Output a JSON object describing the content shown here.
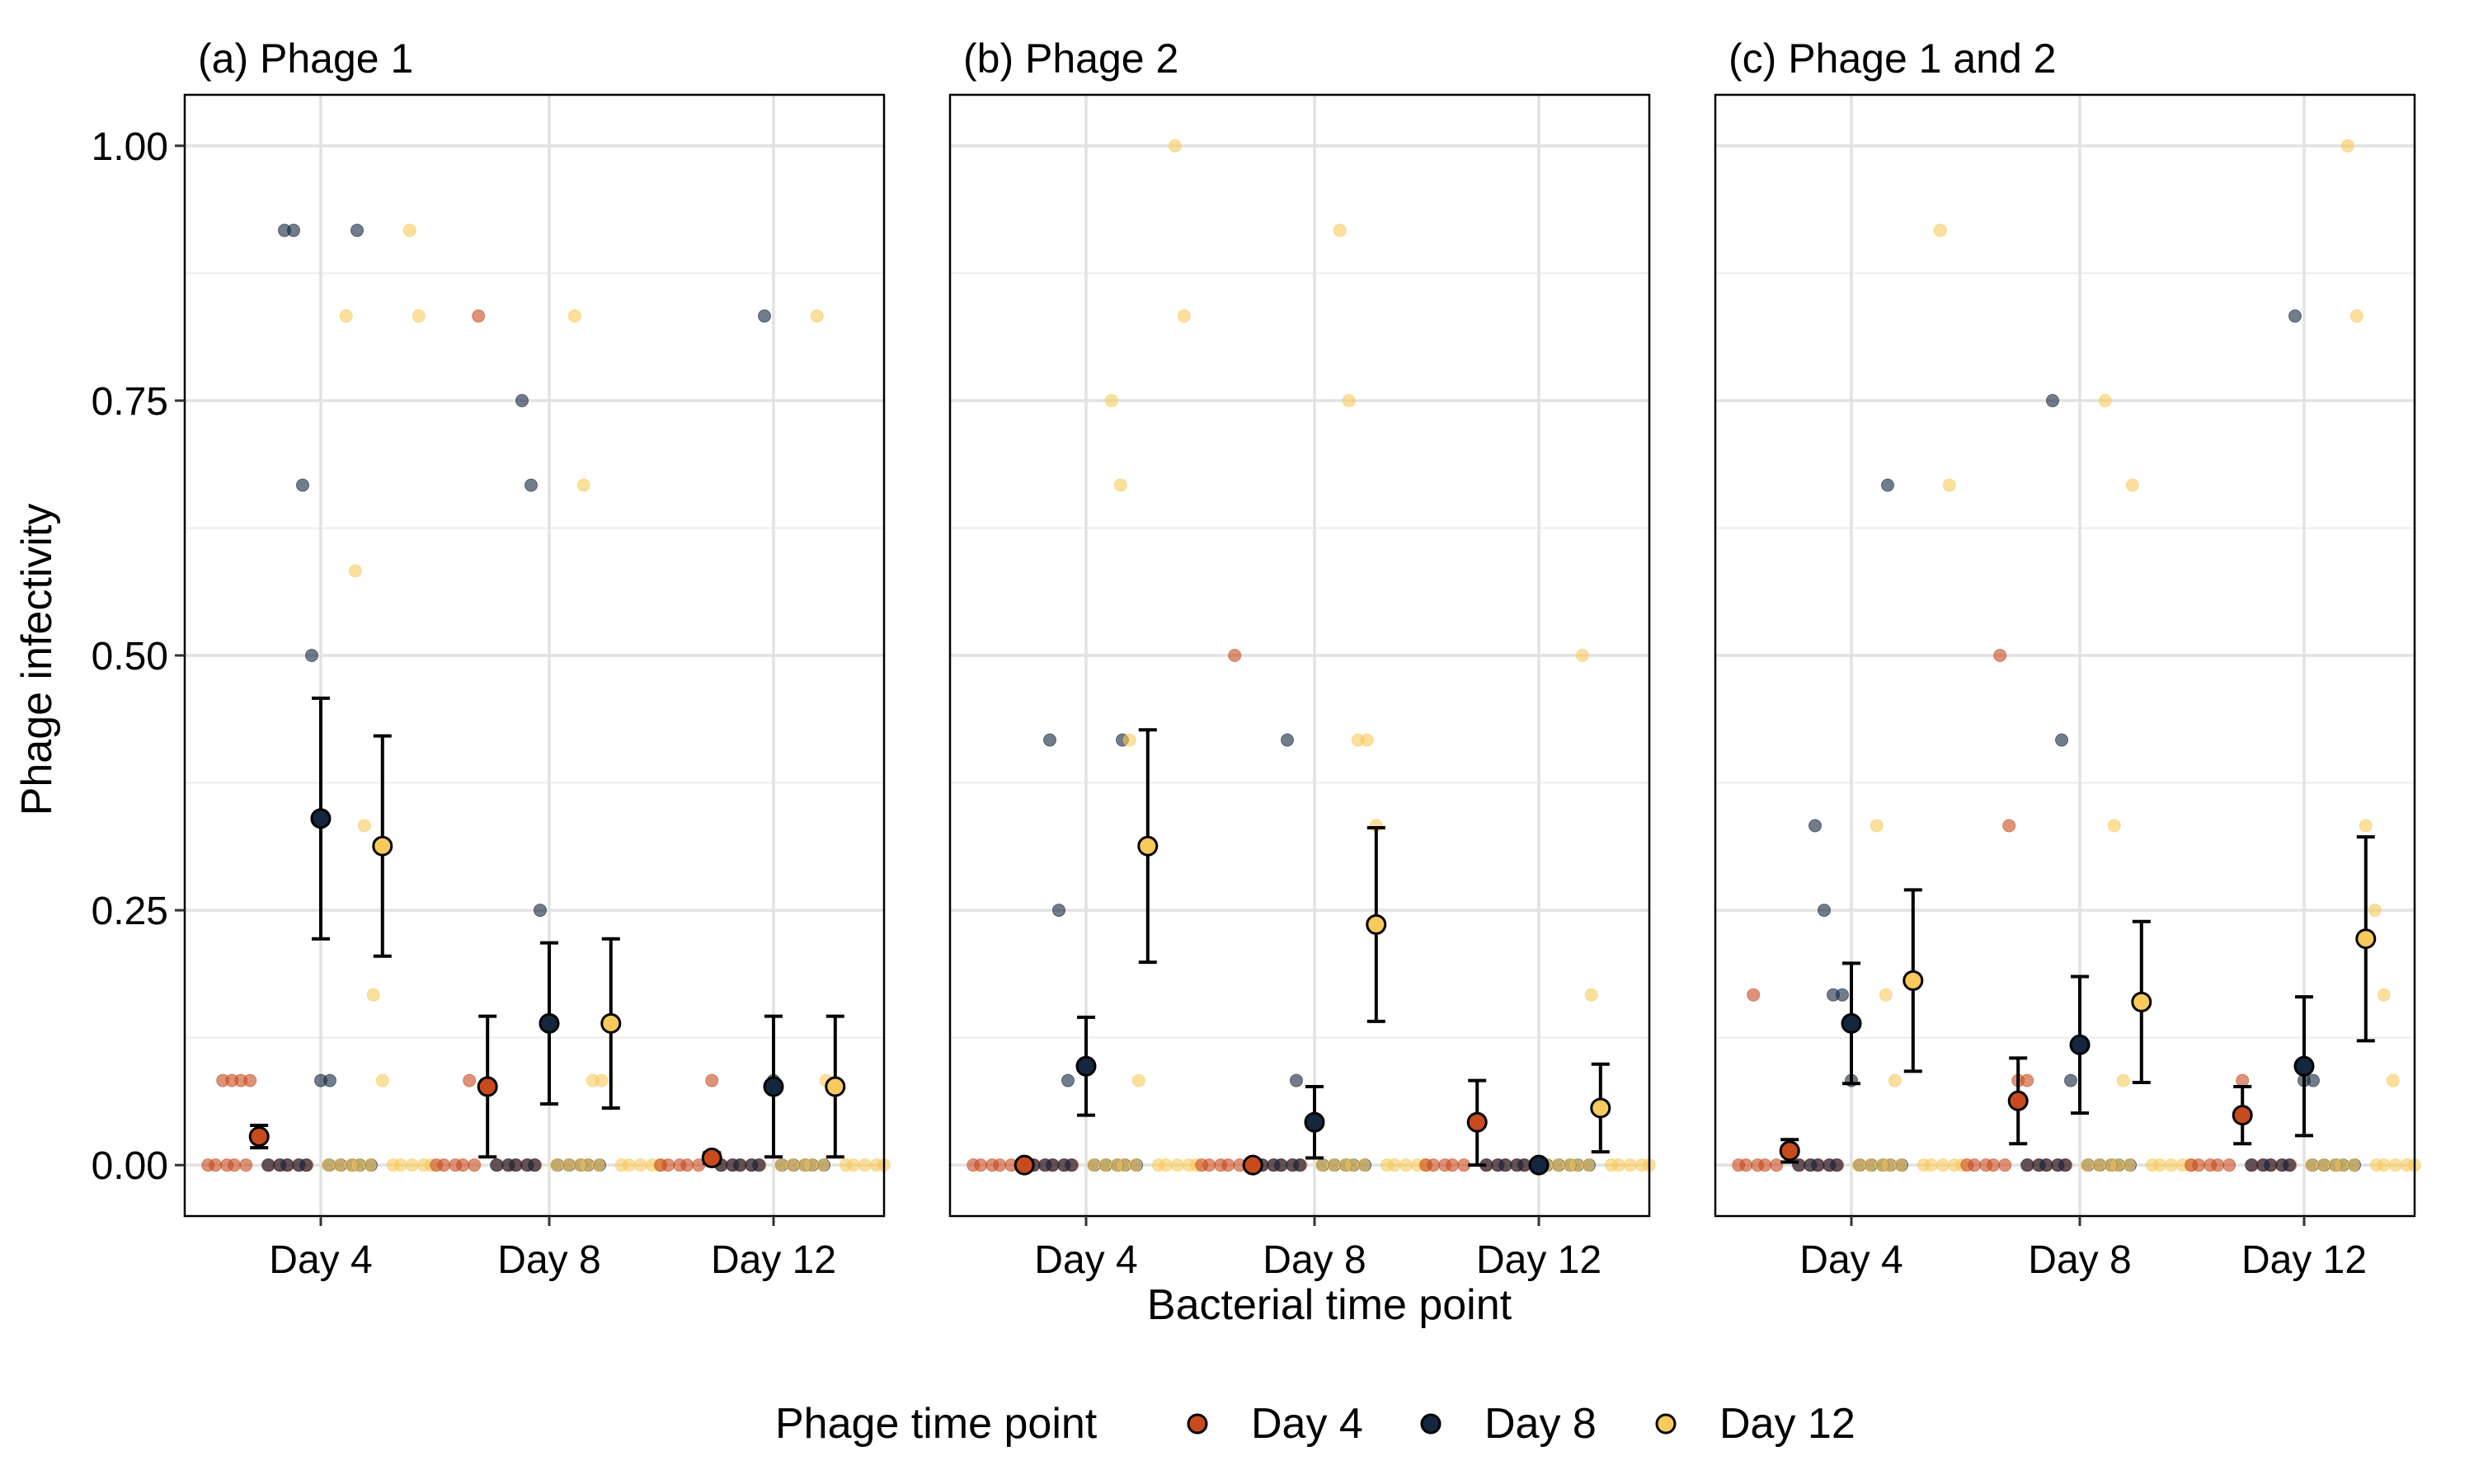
{
  "chart_data": {
    "type": "scatter",
    "ylabel": "Phage infectivity",
    "xlabel": "Bacterial time point",
    "categories": [
      "Day 4",
      "Day 8",
      "Day 12"
    ],
    "ylim": [
      -0.05,
      1.05
    ],
    "yticks": [
      0,
      0.25,
      0.5,
      0.75,
      1.0
    ],
    "ytick_labels": [
      "0.00",
      "0.25",
      "0.50",
      "0.75",
      "1.00"
    ],
    "grid": true,
    "legend": {
      "title": "Phage time point",
      "placement": "bottom",
      "entries": [
        {
          "label": "Day 4",
          "color": "#C84B1E"
        },
        {
          "label": "Day 8",
          "color": "#14273F"
        },
        {
          "label": "Day 12",
          "color": "#F8C95C"
        }
      ]
    },
    "series_offsets": [
      -0.27,
      0,
      0.27
    ],
    "panels": [
      {
        "title": "(a) Phage 1",
        "means": [
          [
            {
              "y": 0.028,
              "lo": 0.017,
              "hi": 0.039
            },
            {
              "y": 0.077,
              "lo": 0.008,
              "hi": 0.146
            },
            {
              "y": 0.007,
              "lo": 0.002,
              "hi": 0.012
            }
          ],
          [
            {
              "y": 0.34,
              "lo": 0.222,
              "hi": 0.458
            },
            {
              "y": 0.139,
              "lo": 0.06,
              "hi": 0.218
            },
            {
              "y": 0.077,
              "lo": 0.008,
              "hi": 0.146
            }
          ],
          [
            {
              "y": 0.313,
              "lo": 0.205,
              "hi": 0.421
            },
            {
              "y": 0.139,
              "lo": 0.056,
              "hi": 0.222
            },
            {
              "y": 0.077,
              "lo": 0.008,
              "hi": 0.146
            }
          ]
        ],
        "raw": [
          [
            [
              0.083,
              0.083,
              0.083,
              0.083
            ],
            [
              0.083,
              0.833
            ],
            [
              0.083
            ]
          ],
          [
            [
              0.917,
              0.917,
              0.917,
              0.667,
              0.5,
              0.083,
              0.083
            ],
            [
              0.75,
              0.667,
              0.25
            ],
            [
              0.833,
              0.083
            ]
          ],
          [
            [
              0.917,
              0.833,
              0.833,
              0.583,
              0.333,
              0.167,
              0.083
            ],
            [
              0.833,
              0.667,
              0.083,
              0.083
            ],
            [
              0.833,
              0.083
            ]
          ]
        ]
      },
      {
        "title": "(b) Phage 2",
        "means": [
          [
            {
              "y": 0.0,
              "lo": 0.0,
              "hi": 0.0
            },
            {
              "y": 0.0,
              "lo": 0.0,
              "hi": 0.0
            },
            {
              "y": 0.042,
              "lo": 0.0,
              "hi": 0.083
            }
          ],
          [
            {
              "y": 0.097,
              "lo": 0.049,
              "hi": 0.145
            },
            {
              "y": 0.042,
              "lo": 0.007,
              "hi": 0.077
            },
            {
              "y": 0.0,
              "lo": 0.0,
              "hi": 0.0
            }
          ],
          [
            {
              "y": 0.313,
              "lo": 0.199,
              "hi": 0.427
            },
            {
              "y": 0.236,
              "lo": 0.141,
              "hi": 0.331
            },
            {
              "y": 0.056,
              "lo": 0.013,
              "hi": 0.099
            }
          ]
        ],
        "raw": [
          [
            [],
            [
              0.5
            ],
            []
          ],
          [
            [
              0.417,
              0.417,
              0.25,
              0.083
            ],
            [
              0.417,
              0.083
            ],
            []
          ],
          [
            [
              1.0,
              0.833,
              0.75,
              0.667,
              0.417,
              0.083
            ],
            [
              0.917,
              0.75,
              0.417,
              0.417,
              0.333
            ],
            [
              0.5,
              0.167
            ]
          ]
        ]
      },
      {
        "title": "(c) Phage 1 and 2",
        "means": [
          [
            {
              "y": 0.014,
              "lo": 0.003,
              "hi": 0.025
            },
            {
              "y": 0.063,
              "lo": 0.021,
              "hi": 0.105
            },
            {
              "y": 0.049,
              "lo": 0.021,
              "hi": 0.077
            }
          ],
          [
            {
              "y": 0.139,
              "lo": 0.08,
              "hi": 0.198
            },
            {
              "y": 0.118,
              "lo": 0.051,
              "hi": 0.185
            },
            {
              "y": 0.097,
              "lo": 0.029,
              "hi": 0.165
            }
          ],
          [
            {
              "y": 0.181,
              "lo": 0.092,
              "hi": 0.27
            },
            {
              "y": 0.16,
              "lo": 0.081,
              "hi": 0.239
            },
            {
              "y": 0.222,
              "lo": 0.122,
              "hi": 0.322
            }
          ]
        ],
        "raw": [
          [
            [
              0.167
            ],
            [
              0.5,
              0.333,
              0.083,
              0.083
            ],
            [
              0.083
            ]
          ],
          [
            [
              0.667,
              0.333,
              0.25,
              0.167,
              0.167,
              0.083
            ],
            [
              0.75,
              0.417,
              0.083
            ],
            [
              0.833,
              0.083,
              0.083
            ]
          ],
          [
            [
              0.917,
              0.667,
              0.333,
              0.167,
              0.083
            ],
            [
              0.75,
              0.333,
              0.083,
              0.667
            ],
            [
              1.0,
              0.833,
              0.333,
              0.25,
              0.167,
              0.083
            ]
          ]
        ]
      }
    ]
  }
}
